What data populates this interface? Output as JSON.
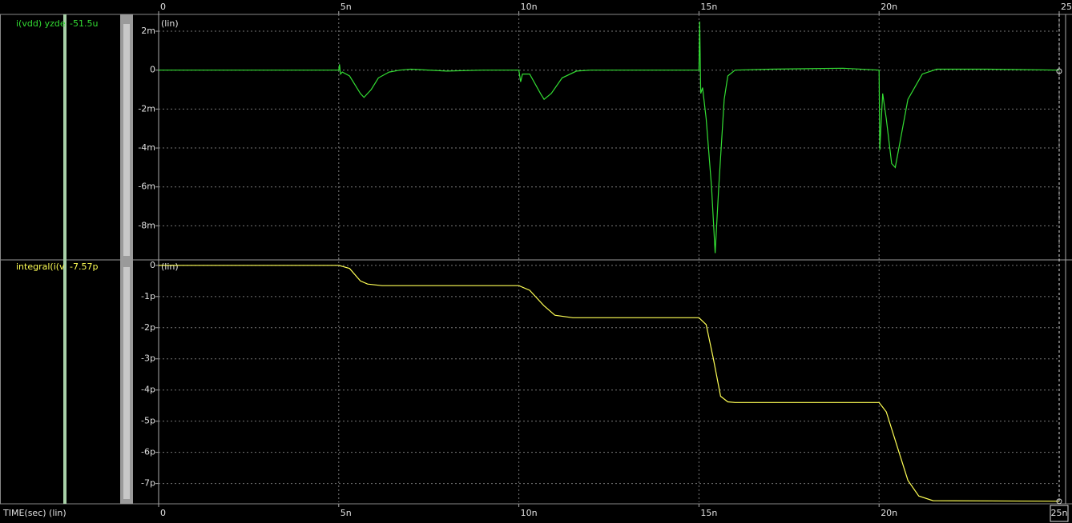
{
  "chart_data": [
    {
      "type": "line",
      "scale_label": "(lin)",
      "cursor_value": -5.15e-05,
      "cursor_value_label": "-51.5u",
      "xlim": [
        0,
        2.5e-08
      ],
      "xticks": [
        0,
        {
          "value": 5e-09,
          "label": "5n"
        },
        {
          "value": 1e-08,
          "label": "10n"
        },
        {
          "value": 1.5e-08,
          "label": "15n"
        },
        {
          "value": 2e-08,
          "label": "20n"
        },
        {
          "value": 2.5e-08,
          "label": "25n"
        }
      ],
      "ylim": [
        -0.00975,
        0.0027
      ],
      "yticks": [
        {
          "value": 0.002,
          "label": "2m"
        },
        0,
        {
          "value": -0.002,
          "label": "-2m"
        },
        {
          "value": -0.004,
          "label": "-4m"
        },
        {
          "value": -0.006,
          "label": "-6m"
        },
        {
          "value": -0.008,
          "label": "-8m"
        }
      ],
      "grid": true,
      "x": [
        0,
        5e-09,
        5.02e-09,
        5.05e-09,
        5.1e-09,
        5.3e-09,
        5.6e-09,
        5.7e-09,
        5.9e-09,
        6.1e-09,
        6.4e-09,
        6.7e-09,
        7e-09,
        8e-09,
        9e-09,
        1e-08,
        1.005e-08,
        1.01e-08,
        1.03e-08,
        1.06e-08,
        1.07e-08,
        1.09e-08,
        1.12e-08,
        1.16e-08,
        1.2e-08,
        1.5e-08,
        1.502e-08,
        1.505e-08,
        1.51e-08,
        1.52e-08,
        1.535e-08,
        1.545e-08,
        1.555e-08,
        1.57e-08,
        1.58e-08,
        1.6e-08,
        1.7e-08,
        1.9e-08,
        2e-08,
        2.002e-08,
        2.005e-08,
        2.01e-08,
        2.02e-08,
        2.035e-08,
        2.045e-08,
        2.06e-08,
        2.08e-08,
        2.12e-08,
        2.16e-08,
        2.3e-08,
        2.5e-08
      ],
      "series": [
        {
          "name": "i(vdd) yzde",
          "color": "#33dd33",
          "values": [
            0,
            0,
            0.0003,
            -0.0002,
            -0.0001,
            -0.0003,
            -0.0012,
            -0.0014,
            -0.001,
            -0.0004,
            -0.0001,
            0,
            5e-05,
            -5e-05,
            0,
            0,
            -0.0006,
            -0.0002,
            -0.0002,
            -0.0012,
            -0.0015,
            -0.0012,
            -0.0004,
            -5e-05,
            0,
            0,
            0.0025,
            -0.0012,
            -0.0009,
            -0.0025,
            -0.006,
            -0.0094,
            -0.006,
            -0.0015,
            -0.0003,
            0,
            5e-05,
            0.0001,
            0,
            -0.0041,
            -0.003,
            -0.0012,
            -0.0025,
            -0.0048,
            -0.005,
            -0.0035,
            -0.0015,
            -0.0002,
            5e-05,
            5e-05,
            0
          ]
        }
      ]
    },
    {
      "type": "line",
      "scale_label": "(lin)",
      "xlabel": "TIME(sec) (lin)",
      "cursor_value": -7.57e-12,
      "cursor_value_label": "-7.57p",
      "cursor_x": {
        "value": 2.5e-08,
        "label": "25n"
      },
      "xlim": [
        0,
        2.5e-08
      ],
      "xticks": [
        0,
        {
          "value": 5e-09,
          "label": "5n"
        },
        {
          "value": 1e-08,
          "label": "10n"
        },
        {
          "value": 1.5e-08,
          "label": "15n"
        },
        {
          "value": 2e-08,
          "label": "20n"
        }
      ],
      "ylim": [
        -7.6e-12,
        1.5e-13
      ],
      "yticks": [
        0,
        {
          "value": -1e-12,
          "label": "-1p"
        },
        {
          "value": -2e-12,
          "label": "-2p"
        },
        {
          "value": -3e-12,
          "label": "-3p"
        },
        {
          "value": -4e-12,
          "label": "-4p"
        },
        {
          "value": -5e-12,
          "label": "-5p"
        },
        {
          "value": -6e-12,
          "label": "-6p"
        },
        {
          "value": -7e-12,
          "label": "-7p"
        }
      ],
      "grid": true,
      "x": [
        0,
        5e-09,
        5.3e-09,
        5.6e-09,
        5.8e-09,
        6.2e-09,
        1e-08,
        1.03e-08,
        1.07e-08,
        1.1e-08,
        1.15e-08,
        1.5e-08,
        1.52e-08,
        1.54e-08,
        1.56e-08,
        1.58e-08,
        1.6e-08,
        2e-08,
        2.02e-08,
        2.05e-08,
        2.08e-08,
        2.11e-08,
        2.15e-08,
        2.5e-08
      ],
      "series": [
        {
          "name": "integral(i(v",
          "color": "#ffff55",
          "values": [
            0,
            0,
            -1e-13,
            -5e-13,
            -6e-13,
            -6.5e-13,
            -6.5e-13,
            -8e-13,
            -1.3e-12,
            -1.6e-12,
            -1.68e-12,
            -1.68e-12,
            -1.9e-12,
            -3e-12,
            -4.2e-12,
            -4.38e-12,
            -4.4e-12,
            -4.4e-12,
            -4.7e-12,
            -5.8e-12,
            -6.9e-12,
            -7.4e-12,
            -7.55e-12,
            -7.57e-12
          ]
        }
      ]
    }
  ]
}
